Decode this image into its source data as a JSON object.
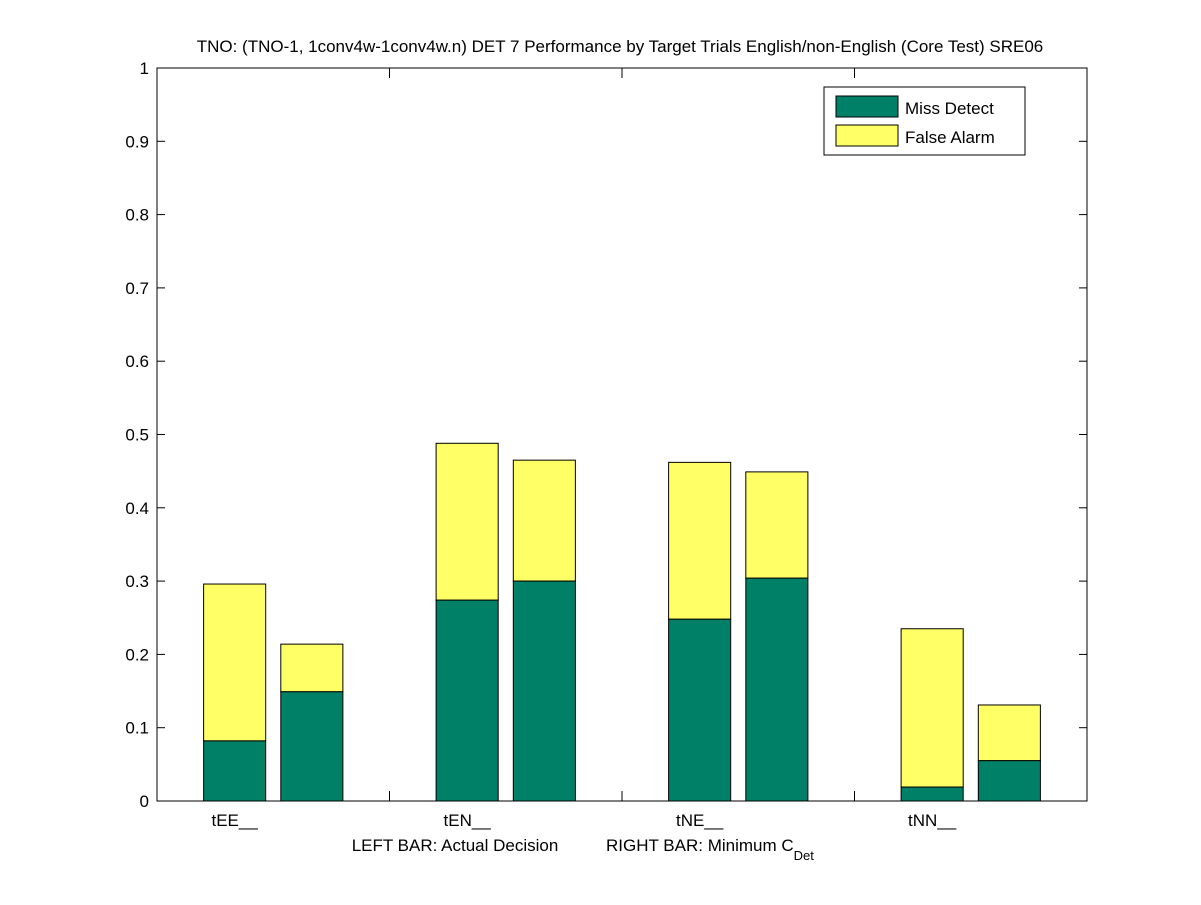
{
  "chart_data": {
    "type": "bar",
    "stacked": true,
    "title": "TNO: (TNO-1, 1conv4w-1conv4w.n) DET 7 Performance by Target Trials English/non-English (Core Test) SRE06",
    "xlabel_left": "LEFT BAR: Actual Decision",
    "xlabel_right": "RIGHT BAR: Minimum C",
    "xlabel_right_sub": "Det",
    "ylabel": "",
    "ylim": [
      0,
      1
    ],
    "yticks": [
      "0",
      "0.1",
      "0.2",
      "0.3",
      "0.4",
      "0.5",
      "0.6",
      "0.7",
      "0.8",
      "0.9",
      "1"
    ],
    "categories": [
      "tEE__",
      "tEN__",
      "tNE__",
      "tNN__"
    ],
    "legend": {
      "placement": "top-right",
      "entries": [
        "Miss Detect",
        "False Alarm"
      ]
    },
    "colors": {
      "miss": "#008066",
      "fa": "#ffff66"
    },
    "series": [
      {
        "name": "Actual Decision (left bar)",
        "miss": [
          0.082,
          0.274,
          0.248,
          0.019
        ],
        "total": [
          0.296,
          0.488,
          0.462,
          0.235
        ]
      },
      {
        "name": "Minimum CDet (right bar)",
        "miss": [
          0.149,
          0.3,
          0.304,
          0.055
        ],
        "total": [
          0.214,
          0.465,
          0.449,
          0.131
        ]
      }
    ]
  }
}
